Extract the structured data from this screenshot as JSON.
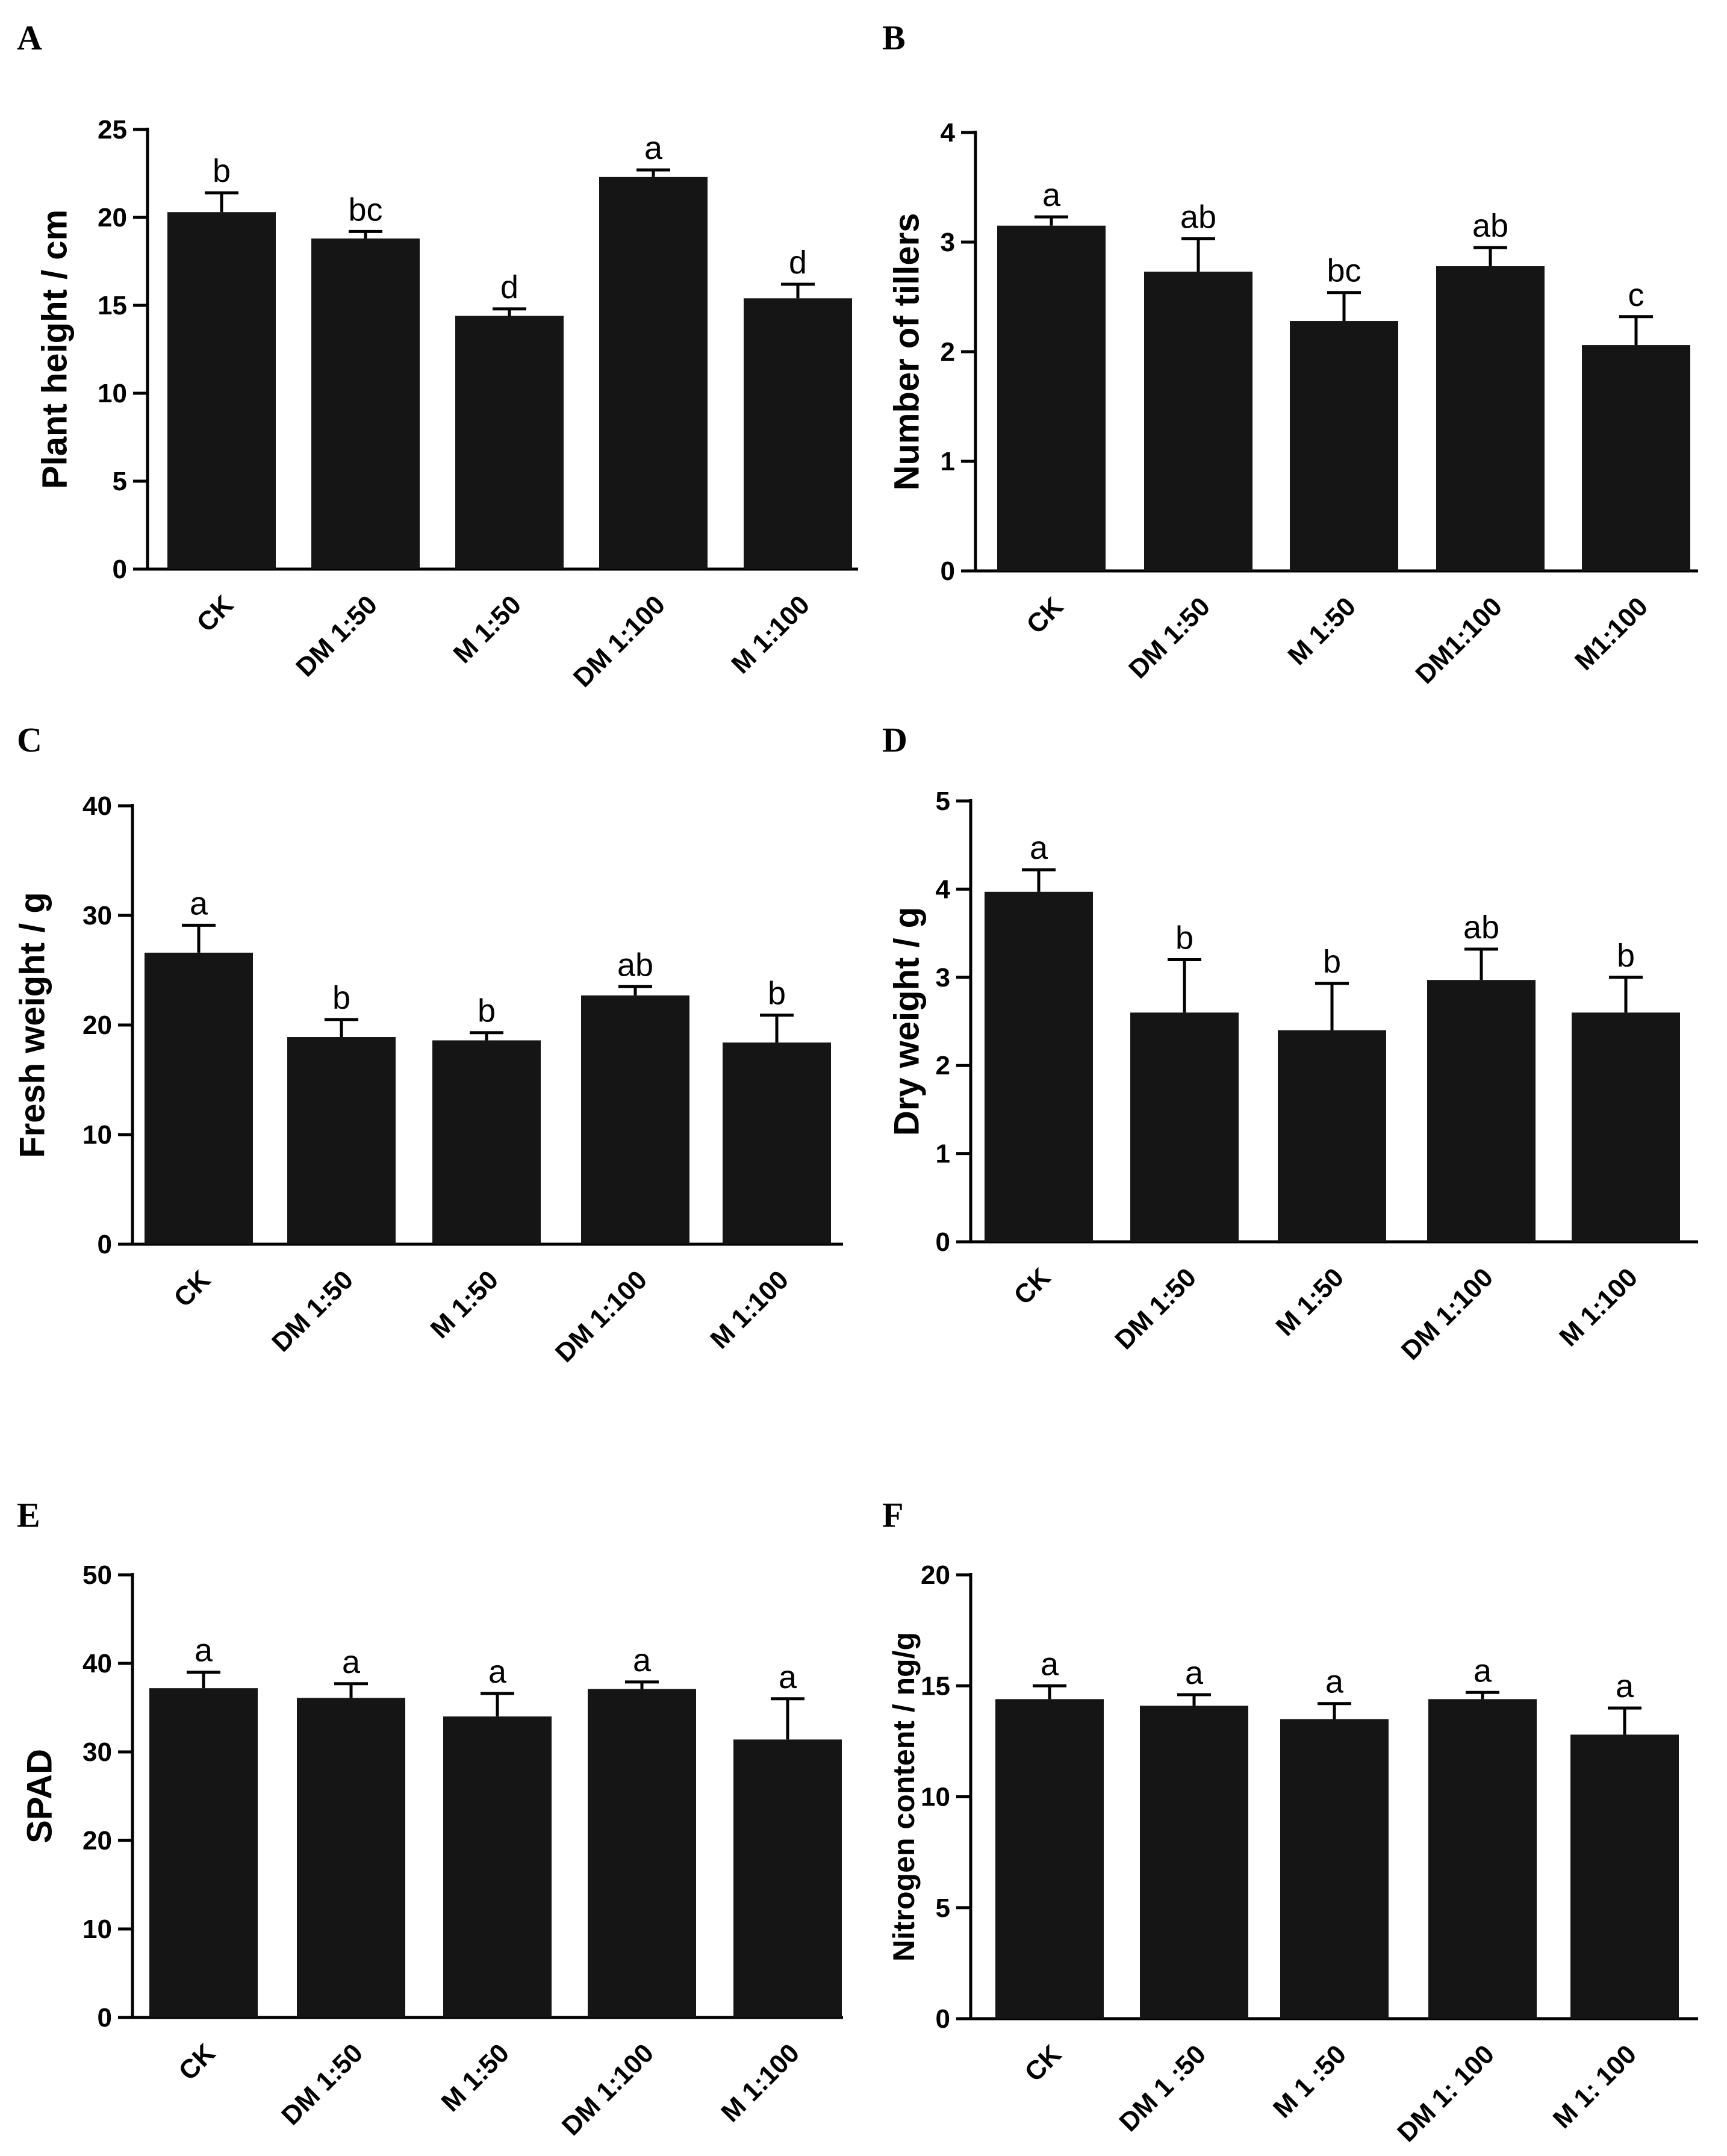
{
  "chart_data": [
    {
      "panel": "A",
      "type": "bar",
      "ylabel": "Plant height / cm",
      "ylim": [
        0,
        25
      ],
      "yticks": [
        0,
        5,
        10,
        15,
        20,
        25
      ],
      "categories": [
        "CK",
        "DM 1:50",
        "M 1:50",
        "DM 1:100",
        "M 1:100"
      ],
      "values": [
        20.3,
        18.8,
        14.4,
        22.3,
        15.4
      ],
      "errors": [
        1.1,
        0.4,
        0.4,
        0.4,
        0.8
      ],
      "significance": [
        "b",
        "bc",
        "d",
        "a",
        "d"
      ]
    },
    {
      "panel": "B",
      "type": "bar",
      "ylabel": "Number of tillers",
      "ylim": [
        0,
        4
      ],
      "yticks": [
        0,
        1,
        2,
        3,
        4
      ],
      "categories": [
        "CK",
        "DM 1:50",
        "M 1:50",
        "DM1:100",
        "M1:100"
      ],
      "values": [
        3.15,
        2.73,
        2.28,
        2.78,
        2.06
      ],
      "errors": [
        0.08,
        0.3,
        0.26,
        0.17,
        0.26
      ],
      "significance": [
        "a",
        "ab",
        "bc",
        "ab",
        "c"
      ]
    },
    {
      "panel": "C",
      "type": "bar",
      "ylabel": "Fresh weight / g",
      "ylim": [
        0,
        40
      ],
      "yticks": [
        0,
        10,
        20,
        30,
        40
      ],
      "categories": [
        "CK",
        "DM 1:50",
        "M 1:50",
        "DM 1:100",
        "M 1:100"
      ],
      "values": [
        26.6,
        18.9,
        18.6,
        22.7,
        18.4
      ],
      "errors": [
        2.5,
        1.6,
        0.7,
        0.8,
        2.5
      ],
      "significance": [
        "a",
        "b",
        "b",
        "ab",
        "b"
      ]
    },
    {
      "panel": "D",
      "type": "bar",
      "ylabel": "Dry weight / g",
      "ylim": [
        0,
        5
      ],
      "yticks": [
        0,
        1,
        2,
        3,
        4,
        5
      ],
      "categories": [
        "CK",
        "DM 1:50",
        "M 1:50",
        "DM 1:100",
        "M 1:100"
      ],
      "values": [
        3.97,
        2.6,
        2.4,
        2.97,
        2.6
      ],
      "errors": [
        0.25,
        0.6,
        0.53,
        0.35,
        0.4
      ],
      "significance": [
        "a",
        "b",
        "b",
        "ab",
        "b"
      ]
    },
    {
      "panel": "E",
      "type": "bar",
      "ylabel": "SPAD",
      "ylim": [
        0,
        50
      ],
      "yticks": [
        0,
        10,
        20,
        30,
        40,
        50
      ],
      "categories": [
        "CK",
        "DM 1:50",
        "M 1:50",
        "DM 1:100",
        "M 1:100"
      ],
      "values": [
        37.2,
        36.1,
        34.0,
        37.1,
        31.4
      ],
      "errors": [
        1.8,
        1.6,
        2.6,
        0.8,
        4.6
      ],
      "significance": [
        "a",
        "a",
        "a",
        "a",
        "a"
      ]
    },
    {
      "panel": "F",
      "type": "bar",
      "ylabel": "Nitrogen content / ng/g",
      "ylim": [
        0,
        20
      ],
      "yticks": [
        0,
        5,
        10,
        15,
        20
      ],
      "categories": [
        "CK",
        "DM 1 :50",
        "M 1 :50",
        "DM 1: 100",
        "M 1: 100"
      ],
      "values": [
        14.4,
        14.1,
        13.5,
        14.4,
        12.8
      ],
      "errors": [
        0.6,
        0.5,
        0.7,
        0.3,
        1.2
      ],
      "significance": [
        "a",
        "a",
        "a",
        "a",
        "a"
      ]
    }
  ]
}
